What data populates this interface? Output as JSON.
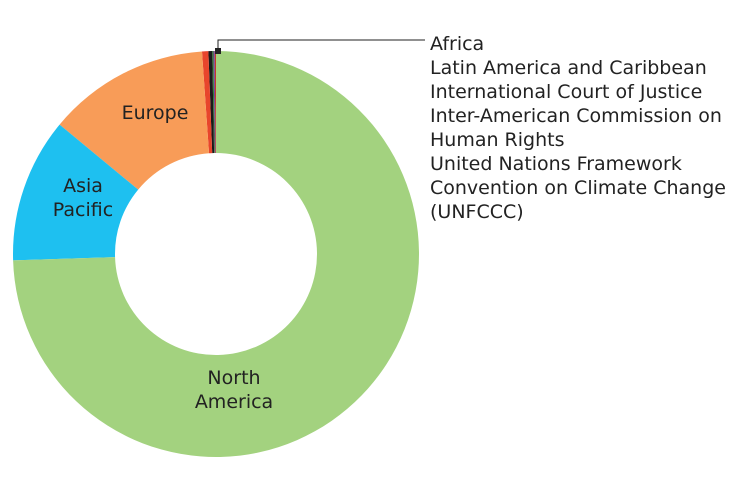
{
  "chart_data": {
    "type": "donut",
    "categories": [
      "North America",
      "Asia Pacific",
      "Europe",
      "Africa",
      "Latin America and Caribbean",
      "International Court of Justice",
      "Inter-American Commission on Human Rights",
      "United Nations Framework Convention on Climate Change (UNFCCC)"
    ],
    "values": [
      74.5,
      11.5,
      12.9,
      0.5,
      0.3,
      0.1,
      0.1,
      0.1
    ],
    "colors": [
      "#a3d27f",
      "#1ec0f0",
      "#f89c58",
      "#e8452c",
      "#1a1a1a",
      "#2e7d32",
      "#7a3e9d",
      "#c0392b"
    ]
  }
}
